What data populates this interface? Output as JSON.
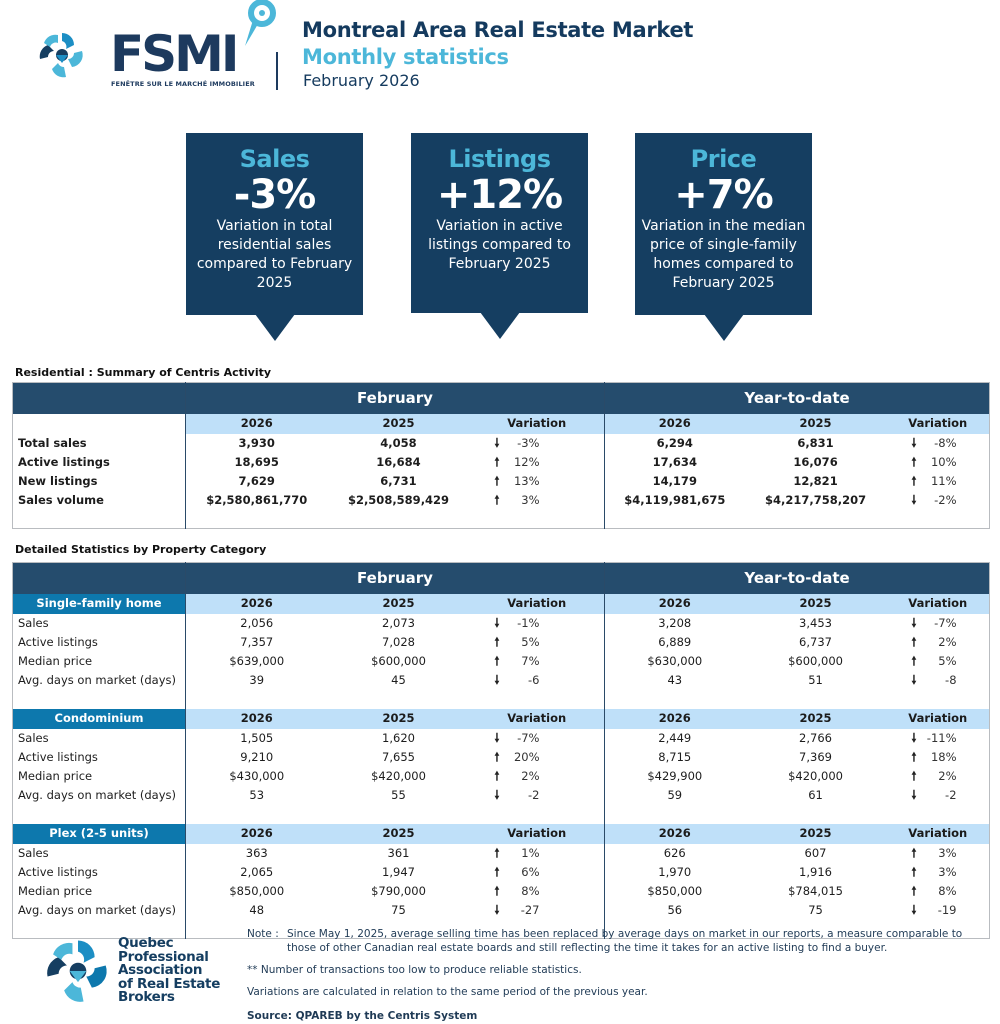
{
  "header": {
    "brand_logo": "FSMI",
    "brand_i": "I",
    "brand_tagline": "FENÊTRE SUR LE MARCHÉ IMMOBILIER",
    "title": "Montreal Area Real Estate Market",
    "subtitle": "Monthly statistics",
    "period": "February 2026"
  },
  "kpis": [
    {
      "title": "Sales",
      "value": "-3%",
      "desc": "Variation in total residential sales compared to February 2025"
    },
    {
      "title": "Listings",
      "value": "+12%",
      "desc": "Variation in active listings compared to February 2025"
    },
    {
      "title": "Price",
      "value": "+7%",
      "desc": "Variation in the median price of single-family homes compared to February 2025"
    }
  ],
  "summary": {
    "section_title": "Residential : Summary of Centris Activity",
    "period_headers": [
      "February",
      "Year-to-date"
    ],
    "col_headers": [
      "2026",
      "2025",
      "Variation",
      "2026",
      "2025",
      "Variation"
    ],
    "rows": [
      {
        "label": "Total sales",
        "feb_2026": "3,930",
        "feb_2025": "4,058",
        "feb_dir": "down",
        "feb_var": "-3%",
        "ytd_2026": "6,294",
        "ytd_2025": "6,831",
        "ytd_dir": "down",
        "ytd_var": "-8%"
      },
      {
        "label": "Active listings",
        "feb_2026": "18,695",
        "feb_2025": "16,684",
        "feb_dir": "up",
        "feb_var": "12%",
        "ytd_2026": "17,634",
        "ytd_2025": "16,076",
        "ytd_dir": "up",
        "ytd_var": "10%"
      },
      {
        "label": "New listings",
        "feb_2026": "7,629",
        "feb_2025": "6,731",
        "feb_dir": "up",
        "feb_var": "13%",
        "ytd_2026": "14,179",
        "ytd_2025": "12,821",
        "ytd_dir": "up",
        "ytd_var": "11%"
      },
      {
        "label": "Sales volume",
        "feb_2026": "$2,580,861,770",
        "feb_2025": "$2,508,589,429",
        "feb_dir": "up",
        "feb_var": "3%",
        "ytd_2026": "$4,119,981,675",
        "ytd_2025": "$4,217,758,207",
        "ytd_dir": "down",
        "ytd_var": "-2%"
      }
    ]
  },
  "detailed": {
    "section_title": "Detailed Statistics by Property Category",
    "period_headers": [
      "February",
      "Year-to-date"
    ],
    "col_headers": [
      "2026",
      "2025",
      "Variation",
      "2026",
      "2025",
      "Variation"
    ],
    "categories": [
      {
        "name": "Single-family home",
        "rows": [
          {
            "label": "Sales",
            "feb_2026": "2,056",
            "feb_2025": "2,073",
            "feb_dir": "down",
            "feb_var": "-1%",
            "ytd_2026": "3,208",
            "ytd_2025": "3,453",
            "ytd_dir": "down",
            "ytd_var": "-7%"
          },
          {
            "label": "Active listings",
            "feb_2026": "7,357",
            "feb_2025": "7,028",
            "feb_dir": "up",
            "feb_var": "5%",
            "ytd_2026": "6,889",
            "ytd_2025": "6,737",
            "ytd_dir": "up",
            "ytd_var": "2%"
          },
          {
            "label": "Median price",
            "feb_2026": "$639,000",
            "feb_2025": "$600,000",
            "feb_dir": "up",
            "feb_var": "7%",
            "ytd_2026": "$630,000",
            "ytd_2025": "$600,000",
            "ytd_dir": "up",
            "ytd_var": "5%"
          },
          {
            "label": "Avg. days on market (days)",
            "feb_2026": "39",
            "feb_2025": "45",
            "feb_dir": "down",
            "feb_var": "-6",
            "ytd_2026": "43",
            "ytd_2025": "51",
            "ytd_dir": "down",
            "ytd_var": "-8"
          }
        ]
      },
      {
        "name": "Condominium",
        "rows": [
          {
            "label": "Sales",
            "feb_2026": "1,505",
            "feb_2025": "1,620",
            "feb_dir": "down",
            "feb_var": "-7%",
            "ytd_2026": "2,449",
            "ytd_2025": "2,766",
            "ytd_dir": "down",
            "ytd_var": "-11%"
          },
          {
            "label": "Active listings",
            "feb_2026": "9,210",
            "feb_2025": "7,655",
            "feb_dir": "up",
            "feb_var": "20%",
            "ytd_2026": "8,715",
            "ytd_2025": "7,369",
            "ytd_dir": "up",
            "ytd_var": "18%"
          },
          {
            "label": "Median price",
            "feb_2026": "$430,000",
            "feb_2025": "$420,000",
            "feb_dir": "up",
            "feb_var": "2%",
            "ytd_2026": "$429,900",
            "ytd_2025": "$420,000",
            "ytd_dir": "up",
            "ytd_var": "2%"
          },
          {
            "label": "Avg. days on market (days)",
            "feb_2026": "53",
            "feb_2025": "55",
            "feb_dir": "down",
            "feb_var": "-2",
            "ytd_2026": "59",
            "ytd_2025": "61",
            "ytd_dir": "down",
            "ytd_var": "-2"
          }
        ]
      },
      {
        "name": "Plex (2-5 units)",
        "rows": [
          {
            "label": "Sales",
            "feb_2026": "363",
            "feb_2025": "361",
            "feb_dir": "up",
            "feb_var": "1%",
            "ytd_2026": "626",
            "ytd_2025": "607",
            "ytd_dir": "up",
            "ytd_var": "3%"
          },
          {
            "label": "Active listings",
            "feb_2026": "2,065",
            "feb_2025": "1,947",
            "feb_dir": "up",
            "feb_var": "6%",
            "ytd_2026": "1,970",
            "ytd_2025": "1,916",
            "ytd_dir": "up",
            "ytd_var": "3%"
          },
          {
            "label": "Median price",
            "feb_2026": "$850,000",
            "feb_2025": "$790,000",
            "feb_dir": "up",
            "feb_var": "8%",
            "ytd_2026": "$850,000",
            "ytd_2025": "$784,015",
            "ytd_dir": "up",
            "ytd_var": "8%"
          },
          {
            "label": "Avg. days on market (days)",
            "feb_2026": "48",
            "feb_2025": "75",
            "feb_dir": "down",
            "feb_var": "-27",
            "ytd_2026": "56",
            "ytd_2025": "75",
            "ytd_dir": "down",
            "ytd_var": "-19"
          }
        ]
      }
    ]
  },
  "footer": {
    "org_name_lines": [
      "Quebec",
      "Professional",
      "Association",
      "of Real Estate",
      "Brokers"
    ],
    "note_label": "Note :",
    "note_text": "Since May 1, 2025, average selling time has been replaced by average days on market in our reports, a measure comparable to those of other Canadian real estate boards and still reflecting the time it takes for an active listing to find a buyer.",
    "note_low": "**  Number of transactions too low to produce reliable statistics.",
    "note_variation": "Variations are calculated in relation to the same period of the previous year.",
    "source": "Source: QPAREB by the Centris System"
  },
  "icons": {
    "up": "🠕",
    "down": "🠗"
  },
  "colors": {
    "navy": "#153e61",
    "table_header": "#254c6d",
    "light_blue_header": "#bfe0f9",
    "category_blue": "#0d78ad",
    "accent_cyan": "#4cb7d9"
  }
}
